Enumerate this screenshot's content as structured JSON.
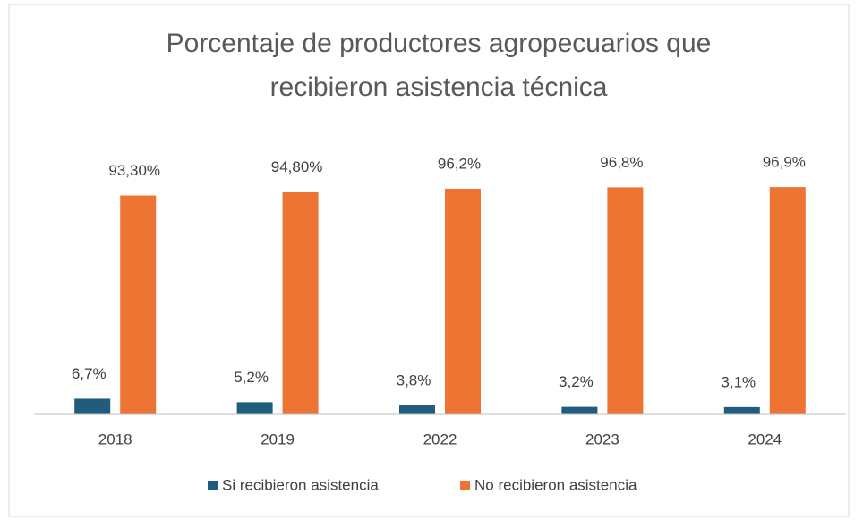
{
  "chart_data": {
    "type": "bar",
    "title": "Porcentaje de productores agropecuarios que recibieron asistencia técnica",
    "categories": [
      "2018",
      "2019",
      "2022",
      "2023",
      "2024"
    ],
    "series": [
      {
        "name": "Si recibieron asistencia",
        "color": "#1f5c7e",
        "values": [
          6.7,
          5.2,
          3.8,
          3.2,
          3.1
        ],
        "value_labels": [
          "6,7%",
          "5,2%",
          "3,8%",
          "3,2%",
          "3,1%"
        ]
      },
      {
        "name": "No recibieron asistencia",
        "color": "#ed7432",
        "values": [
          93.3,
          94.8,
          96.2,
          96.8,
          96.9
        ],
        "value_labels": [
          "93,30%",
          "94,80%",
          "96,2%",
          "96,8%",
          "96,9%"
        ]
      }
    ],
    "ylim": [
      0,
      100
    ],
    "legend": "bottom"
  }
}
